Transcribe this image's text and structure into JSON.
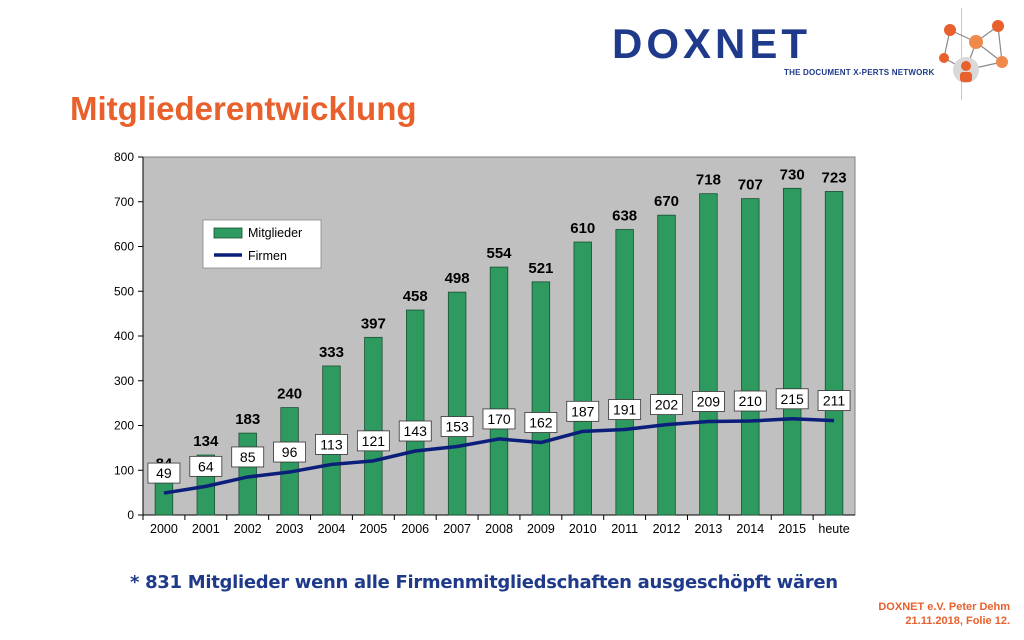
{
  "header": {
    "logo_text": "DOXNET",
    "logo_tagline": "THE DOCUMENT X-PERTS NETWORK",
    "title": "Mitgliederentwicklung"
  },
  "colors": {
    "accent": "#e8602c",
    "brand_blue": "#1f3a8a",
    "bar_green": "#2e9a5f",
    "line_navy": "#0b1f7a",
    "plot_bg": "#c0c0c0"
  },
  "chart_data": {
    "type": "bar",
    "categories": [
      "2000",
      "2001",
      "2002",
      "2003",
      "2004",
      "2005",
      "2006",
      "2007",
      "2008",
      "2009",
      "2010",
      "2011",
      "2012",
      "2013",
      "2014",
      "2015",
      "heute"
    ],
    "series": [
      {
        "name": "Mitglieder",
        "type": "bar",
        "values": [
          84,
          134,
          183,
          240,
          333,
          397,
          458,
          498,
          554,
          521,
          610,
          638,
          670,
          718,
          707,
          730,
          723
        ]
      },
      {
        "name": "Firmen",
        "type": "line",
        "values": [
          49,
          64,
          85,
          96,
          113,
          121,
          143,
          153,
          170,
          162,
          187,
          191,
          202,
          209,
          210,
          215,
          211
        ]
      }
    ],
    "ylim": [
      0,
      800
    ],
    "yticks": [
      0,
      100,
      200,
      300,
      400,
      500,
      600,
      700,
      800
    ],
    "legend_position": "top-left",
    "grid": false
  },
  "footer": {
    "note": "* 831 Mitglieder wenn alle Firmenmitgliedschaften ausgeschöpft wären",
    "line1": "DOXNET e.V.   Peter Dehm",
    "line2": "21.11.2018, Folie 12."
  }
}
